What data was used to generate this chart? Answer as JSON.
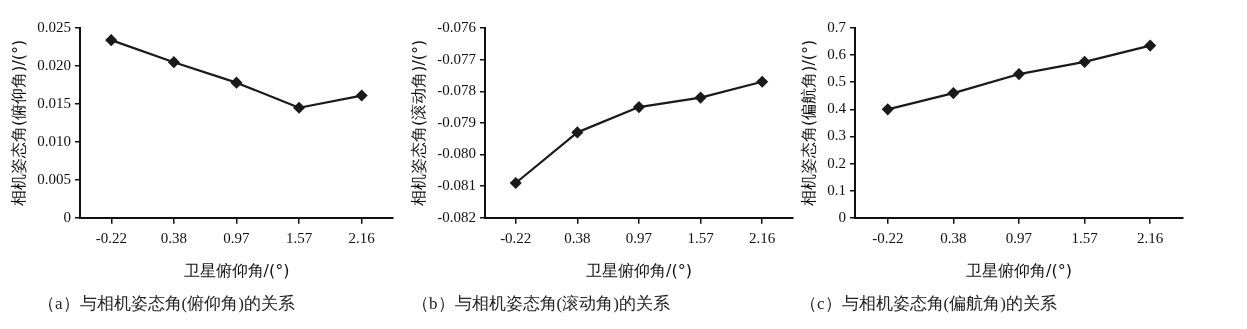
{
  "chart_data": [
    {
      "type": "line",
      "xlabel": "卫星俯仰角/(°)",
      "ylabel": "相机姿态角(俯仰角)/(°)",
      "categories": [
        "-0.22",
        "0.38",
        "0.97",
        "1.57",
        "2.16"
      ],
      "series": [
        {
          "color": "#1a1a1a",
          "values": [
            0.0234,
            0.0205,
            0.0178,
            0.0145,
            0.0161
          ]
        }
      ],
      "ylim": [
        0,
        0.025
      ],
      "yticks": [
        {
          "value": 0,
          "label": "0"
        },
        {
          "value": 0.005,
          "label": "0.005"
        },
        {
          "value": 0.01,
          "label": "0.010"
        },
        {
          "value": 0.015,
          "label": "0.015"
        },
        {
          "value": 0.02,
          "label": "0.020"
        },
        {
          "value": 0.025,
          "label": "0.025"
        }
      ],
      "marker": "diamond",
      "line_style": "solid",
      "legend": false,
      "annotations": [
        "（a）与相机姿态角(俯仰角)的关系"
      ]
    },
    {
      "type": "line",
      "xlabel": "卫星俯仰角/(°)",
      "ylabel": "相机姿态角(滚动角)/(°)",
      "categories": [
        "-0.22",
        "0.38",
        "0.97",
        "1.57",
        "2.16"
      ],
      "series": [
        {
          "color": "#1a1a1a",
          "values": [
            -0.0809,
            -0.0793,
            -0.0785,
            -0.0782,
            -0.0777
          ]
        }
      ],
      "ylim": [
        -0.082,
        -0.076
      ],
      "yticks": [
        {
          "value": -0.082,
          "label": "-0.082"
        },
        {
          "value": -0.081,
          "label": "-0.081"
        },
        {
          "value": -0.08,
          "label": "-0.080"
        },
        {
          "value": -0.079,
          "label": "-0.079"
        },
        {
          "value": -0.078,
          "label": "-0.078"
        },
        {
          "value": -0.077,
          "label": "-0.077"
        },
        {
          "value": -0.076,
          "label": "-0.076"
        }
      ],
      "marker": "diamond",
      "line_style": "solid",
      "legend": false,
      "annotations": [
        "（b）与相机姿态角(滚动角)的关系"
      ]
    },
    {
      "type": "line",
      "xlabel": "卫星俯仰角/(°)",
      "ylabel": "相机姿态角(偏航角)/(°)",
      "categories": [
        "-0.22",
        "0.38",
        "0.97",
        "1.57",
        "2.16"
      ],
      "series": [
        {
          "color": "#1a1a1a",
          "values": [
            0.4,
            0.46,
            0.53,
            0.575,
            0.635
          ]
        }
      ],
      "ylim": [
        0,
        0.7
      ],
      "yticks": [
        0,
        0.1,
        0.2,
        0.3,
        0.4,
        0.5,
        0.6,
        0.7
      ],
      "marker": "diamond",
      "line_style": "solid",
      "legend": false,
      "annotations": [
        "（c）与相机姿态角(偏航角)的关系"
      ]
    }
  ]
}
